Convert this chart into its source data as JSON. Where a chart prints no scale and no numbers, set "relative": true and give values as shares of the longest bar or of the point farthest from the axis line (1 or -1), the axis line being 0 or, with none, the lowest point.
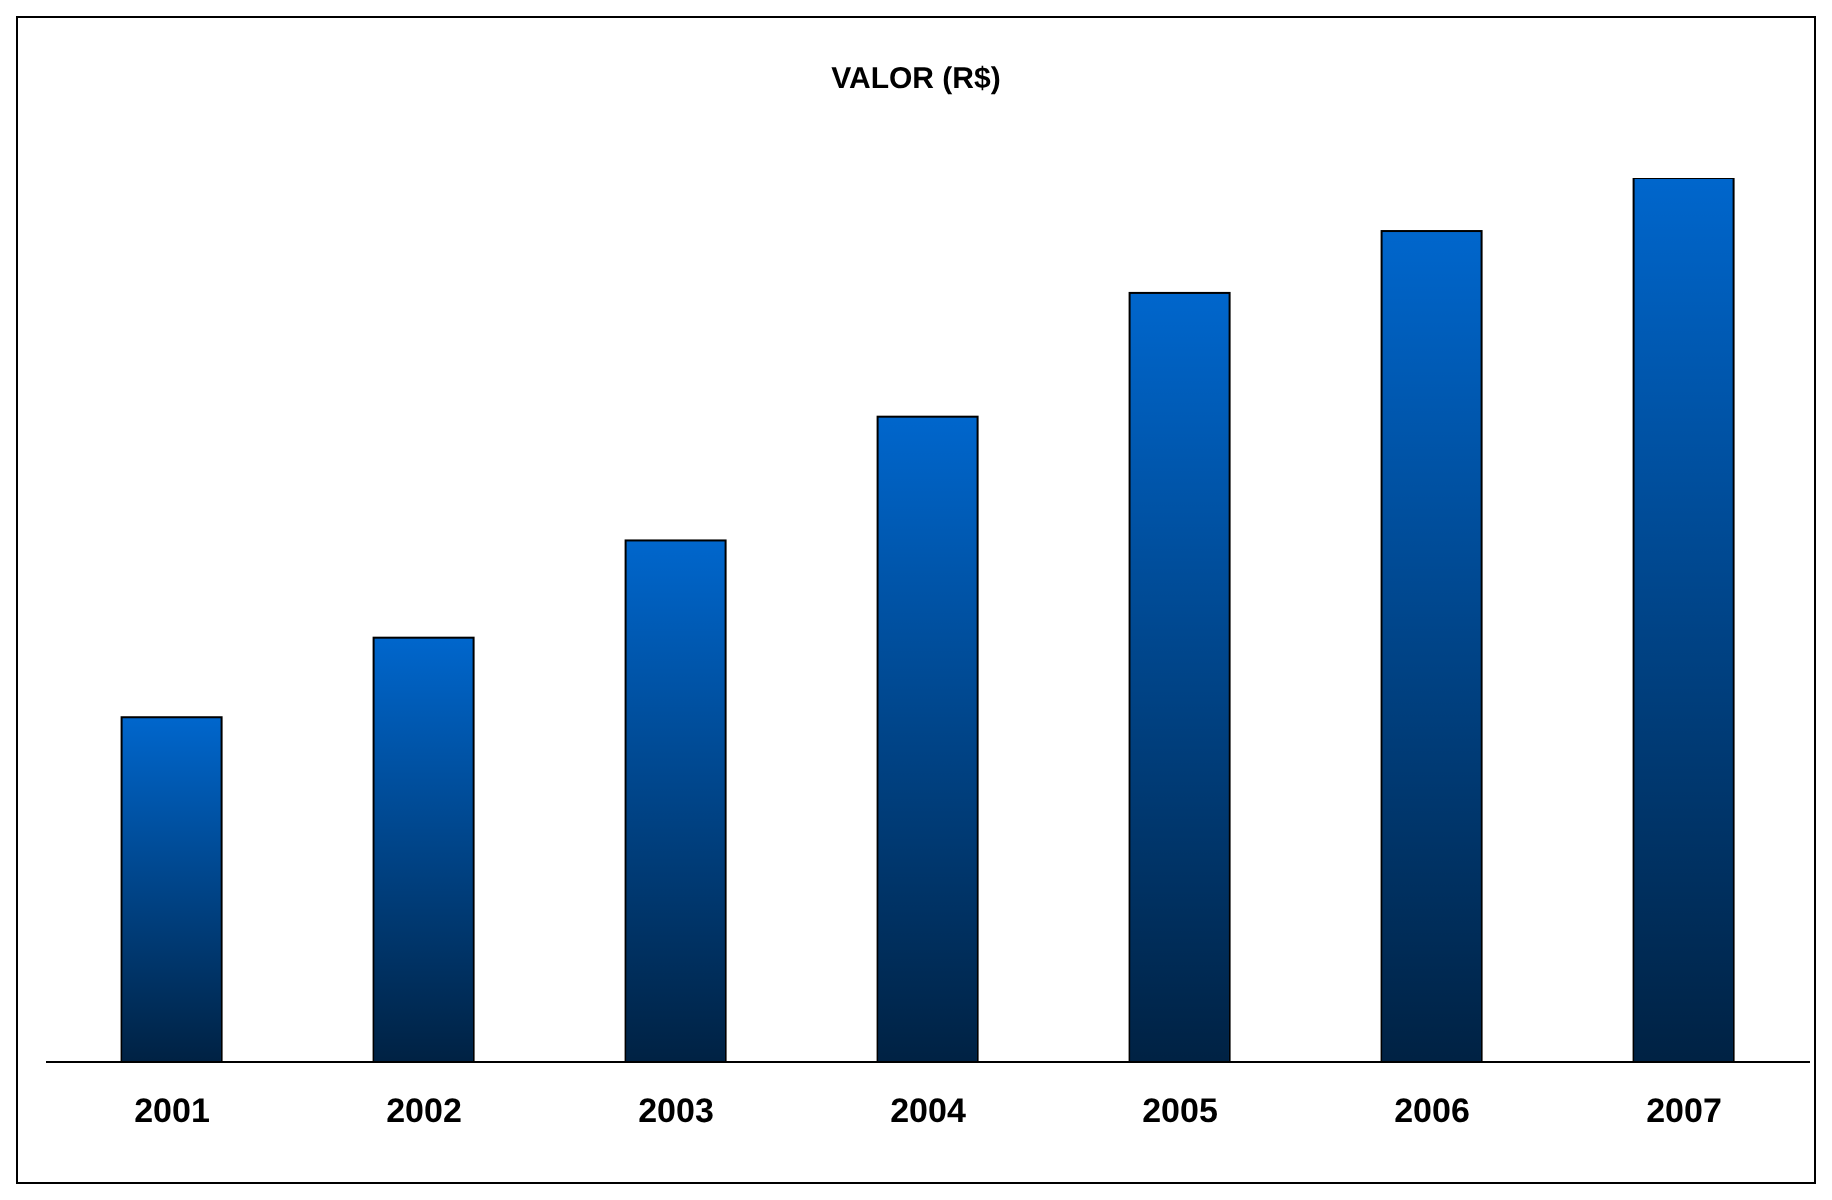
{
  "chart_data": {
    "type": "bar",
    "title": "VALOR (R$)",
    "relative": true,
    "categories": [
      "2001",
      "2002",
      "2003",
      "2004",
      "2005",
      "2006",
      "2007"
    ],
    "values": [
      0.39,
      0.48,
      0.59,
      0.73,
      0.87,
      0.94,
      1
    ],
    "color": "#0066cc"
  }
}
